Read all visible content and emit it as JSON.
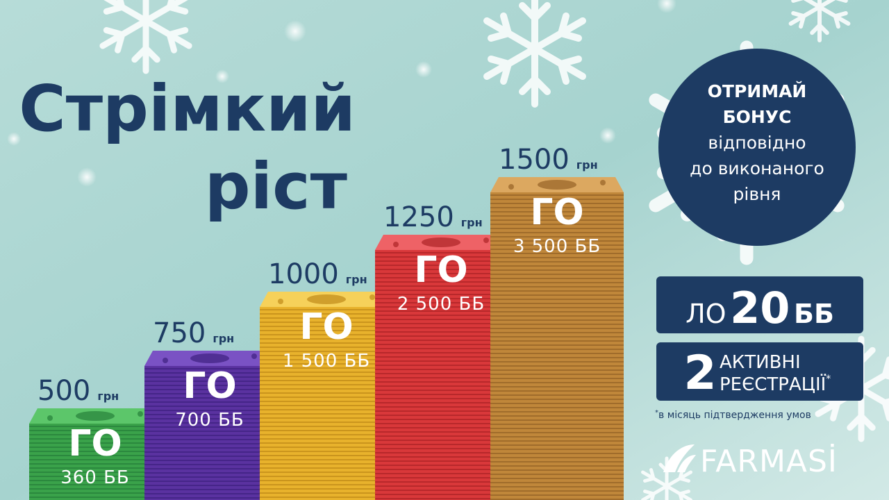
{
  "title": {
    "line1": "Стрімкий",
    "line2": "ріст"
  },
  "levels": [
    {
      "amount": "500",
      "unit": "грн",
      "label": "ГО",
      "points": "360 ББ"
    },
    {
      "amount": "750",
      "unit": "грн",
      "label": "ГО",
      "points": "700 ББ"
    },
    {
      "amount": "1000",
      "unit": "грн",
      "label": "ГО",
      "points": "1 500 ББ"
    },
    {
      "amount": "1250",
      "unit": "грн",
      "label": "ГО",
      "points": "2 500 ББ"
    },
    {
      "amount": "1500",
      "unit": "грн",
      "label": "ГО",
      "points": "3 500 ББ"
    }
  ],
  "badge": {
    "lines": [
      "ОТРИМАЙ",
      "БОНУС",
      "відповідно",
      "до виконаного",
      "рівня"
    ]
  },
  "conditions": {
    "lo": {
      "prefix": "ЛО",
      "number": "20",
      "unit": "ББ"
    },
    "registrations": {
      "number": "2",
      "line1": "АКТИВНІ",
      "line2": "РЕЄСТРАЦІЇ",
      "mark": "*"
    }
  },
  "footnote": {
    "mark": "*",
    "text": "в місяць підтвердження умов"
  },
  "logo": "FARMASİ"
}
